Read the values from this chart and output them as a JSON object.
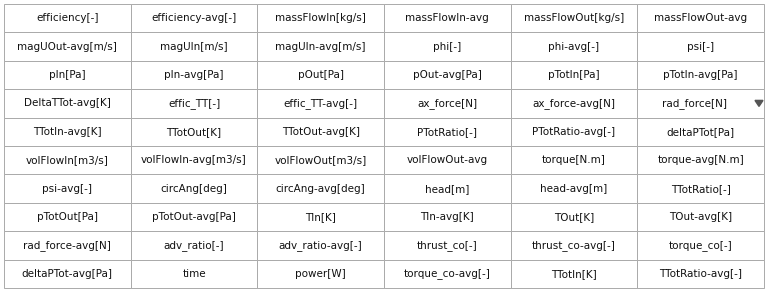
{
  "rows": [
    [
      "efficiency[-]",
      "efficiency-avg[-]",
      "massFlowIn[kg/s]",
      "massFlowIn-avg",
      "massFlowOut[kg/s]",
      "massFlowOut-avg"
    ],
    [
      "magUOut-avg[m/s]",
      "magUIn[m/s]",
      "magUIn-avg[m/s]",
      "phi[-]",
      "phi-avg[-]",
      "psi[-]"
    ],
    [
      "pIn[Pa]",
      "pIn-avg[Pa]",
      "pOut[Pa]",
      "pOut-avg[Pa]",
      "pTotIn[Pa]",
      "pTotIn-avg[Pa]"
    ],
    [
      "DeltaTTot-avg[K]",
      "effic_TT[-]",
      "effic_TT-avg[-]",
      "ax_force[N]",
      "ax_force-avg[N]",
      "rad_force[N]"
    ],
    [
      "TTotIn-avg[K]",
      "TTotOut[K]",
      "TTotOut-avg[K]",
      "PTotRatio[-]",
      "PTotRatio-avg[-]",
      "deltaPTot[Pa]"
    ],
    [
      "volFlowIn[m3/s]",
      "volFlowIn-avg[m3/s]",
      "volFlowOut[m3/s]",
      "volFlowOut-avg",
      "torque[N.m]",
      "torque-avg[N.m]"
    ],
    [
      "psi-avg[-]",
      "circAng[deg]",
      "circAng-avg[deg]",
      "head[m]",
      "head-avg[m]",
      "TTotRatio[-]"
    ],
    [
      "pTotOut[Pa]",
      "pTotOut-avg[Pa]",
      "TIn[K]",
      "TIn-avg[K]",
      "TOut[K]",
      "TOut-avg[K]"
    ],
    [
      "rad_force-avg[N]",
      "adv_ratio[-]",
      "adv_ratio-avg[-]",
      "thrust_co[-]",
      "thrust_co-avg[-]",
      "torque_co[-]"
    ],
    [
      "deltaPTot-avg[Pa]",
      "time",
      "power[W]",
      "torque_co-avg[-]",
      "TTotIn[K]",
      "TTotRatio-avg[-]"
    ]
  ],
  "dropdown_row": 3,
  "dropdown_col": 5,
  "n_cols": 6,
  "background_color": "#ffffff",
  "border_color": "#aaaaaa",
  "text_color": "#111111",
  "font_size": 7.5
}
